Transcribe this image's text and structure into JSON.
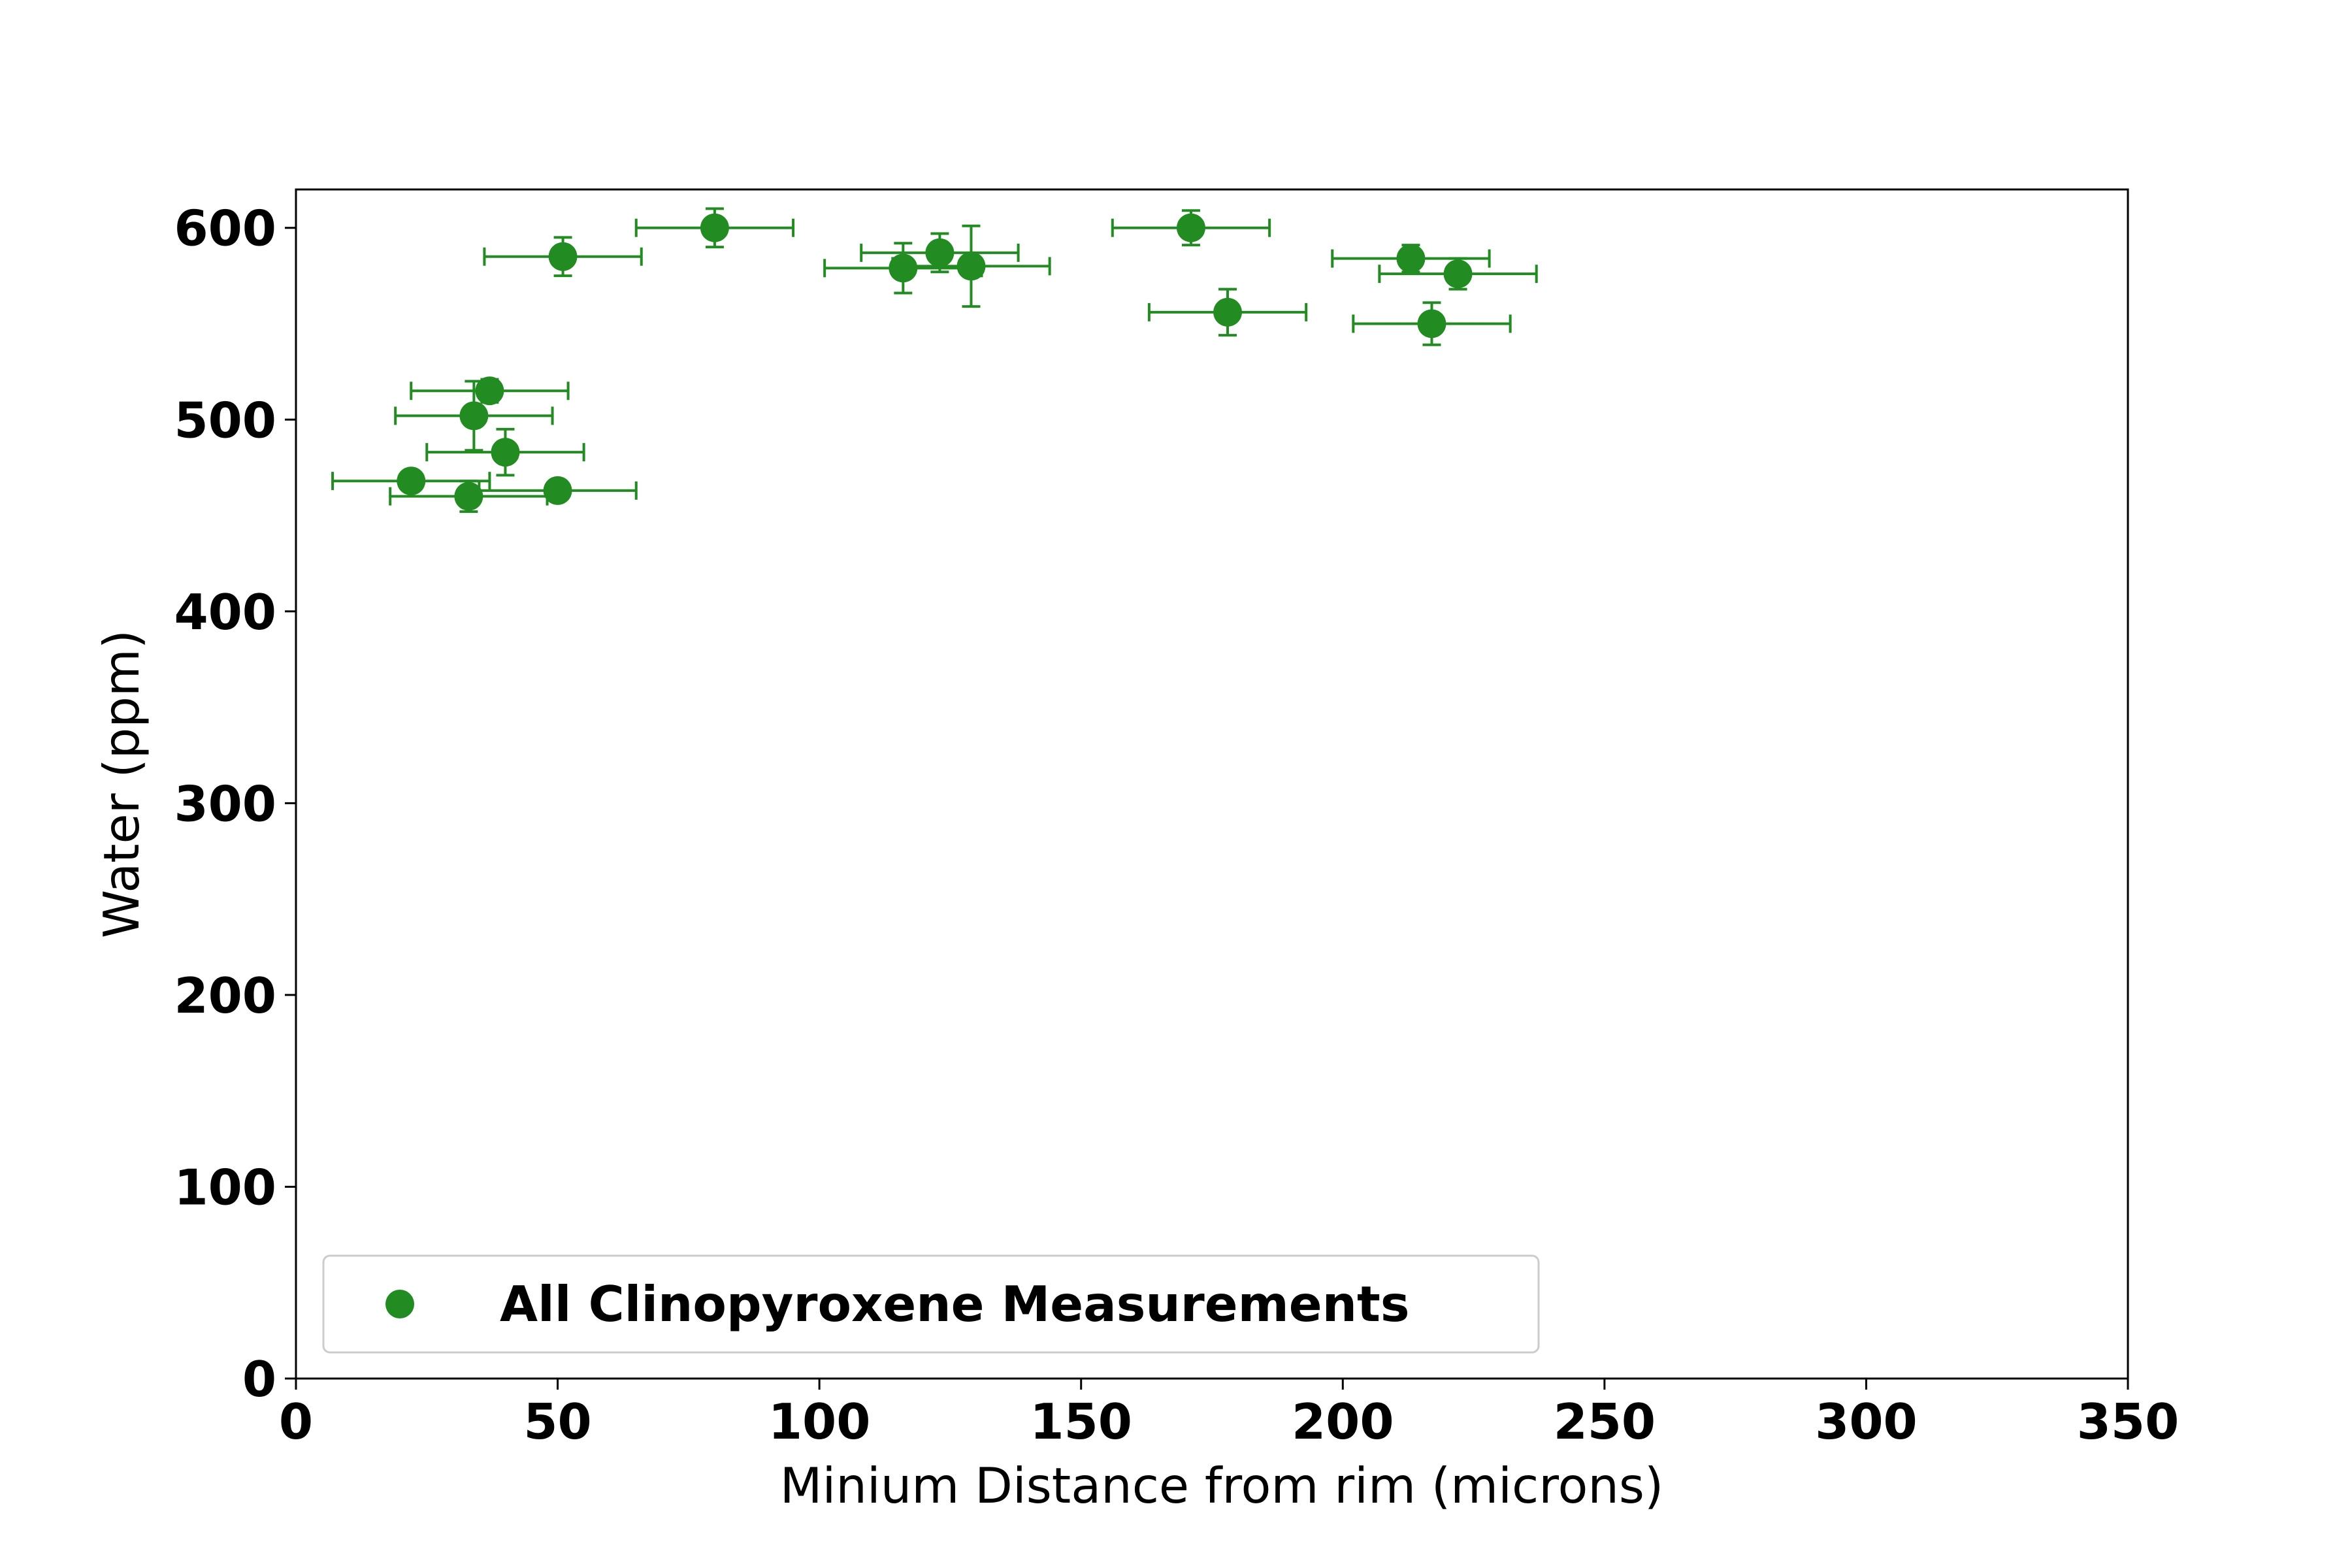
{
  "chart_data": {
    "type": "scatter",
    "title": "",
    "xlabel": "Minium Distance from rim (microns)",
    "ylabel": "Water (ppm)",
    "xlim": [
      0,
      350
    ],
    "ylim": [
      0,
      620
    ],
    "xticks": [
      0,
      50,
      100,
      150,
      200,
      250,
      300,
      350
    ],
    "yticks": [
      0,
      100,
      200,
      300,
      400,
      500,
      600
    ],
    "grid": false,
    "legend_position": "lower-left",
    "color": "#228b22",
    "series": [
      {
        "name": "All Clinopyroxene Measurements",
        "points": [
          {
            "x": 22,
            "y": 468,
            "xerr": 15,
            "yerr": 5
          },
          {
            "x": 33,
            "y": 460,
            "xerr": 15,
            "yerr": 8
          },
          {
            "x": 34,
            "y": 502,
            "xerr": 15,
            "yerr": 18
          },
          {
            "x": 37,
            "y": 515,
            "xerr": 15,
            "yerr": 6
          },
          {
            "x": 40,
            "y": 483,
            "xerr": 15,
            "yerr": 12
          },
          {
            "x": 50,
            "y": 463,
            "xerr": 15,
            "yerr": 5
          },
          {
            "x": 51,
            "y": 585,
            "xerr": 15,
            "yerr": 10
          },
          {
            "x": 80,
            "y": 600,
            "xerr": 15,
            "yerr": 10
          },
          {
            "x": 116,
            "y": 579,
            "xerr": 15,
            "yerr": 13
          },
          {
            "x": 123,
            "y": 587,
            "xerr": 15,
            "yerr": 10
          },
          {
            "x": 129,
            "y": 580,
            "xerr": 15,
            "yerr": 21
          },
          {
            "x": 171,
            "y": 600,
            "xerr": 15,
            "yerr": 9
          },
          {
            "x": 178,
            "y": 556,
            "xerr": 15,
            "yerr": 12
          },
          {
            "x": 213,
            "y": 584,
            "xerr": 15,
            "yerr": 7
          },
          {
            "x": 217,
            "y": 550,
            "xerr": 15,
            "yerr": 11
          },
          {
            "x": 222,
            "y": 576,
            "xerr": 15,
            "yerr": 8
          }
        ]
      }
    ]
  }
}
